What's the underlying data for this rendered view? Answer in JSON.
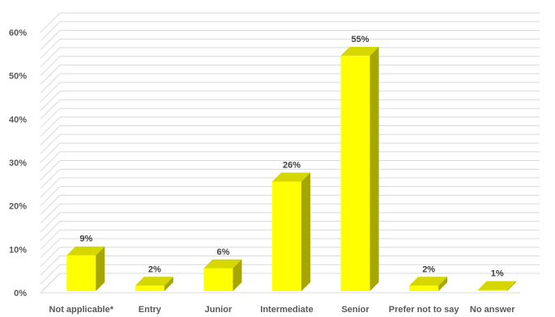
{
  "chart_data": {
    "type": "bar",
    "title": "",
    "xlabel": "",
    "ylabel": "",
    "categories": [
      "Not applicable*",
      "Entry",
      "Junior",
      "Intermediate",
      "Senior",
      "Prefer not to say",
      "No answer"
    ],
    "values": [
      9,
      2,
      6,
      26,
      55,
      2,
      1
    ],
    "data_labels": [
      "9%",
      "2%",
      "6%",
      "26%",
      "55%",
      "2%",
      "1%"
    ],
    "ylim": [
      0,
      60
    ],
    "y_ticks": [
      0,
      10,
      20,
      30,
      40,
      50,
      60
    ],
    "y_tick_labels": [
      "0%",
      "10%",
      "20%",
      "30%",
      "40%",
      "50%",
      "60%"
    ],
    "minor_grid_step": 2,
    "grid": true,
    "style": "3d-column",
    "legend": "none",
    "colors": {
      "bar_front": "#FFFF00",
      "bar_side": "#A6A600",
      "bar_top": "#D6D600",
      "grid": "#D9D9D9",
      "text": "#595959"
    }
  }
}
